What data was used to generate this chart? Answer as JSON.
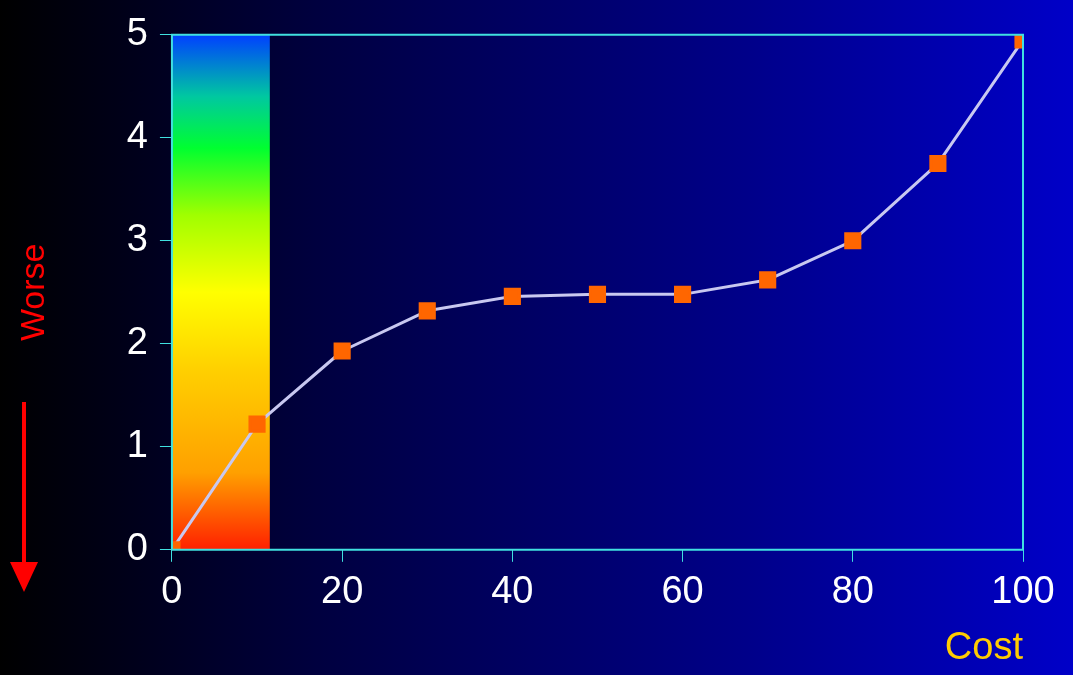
{
  "chart_data": {
    "type": "line",
    "xlabel": "Cost",
    "ylabel": "Worse",
    "x": [
      0,
      10,
      20,
      30,
      40,
      50,
      60,
      70,
      80,
      90,
      100
    ],
    "series": [
      {
        "color": "#ff6600",
        "values": [
          0,
          1.22,
          1.93,
          2.32,
          2.46,
          2.48,
          2.48,
          2.62,
          3.0,
          3.75,
          4.95
        ]
      }
    ],
    "xlim": [
      0,
      100
    ],
    "xticks": [
      0,
      20,
      40,
      60,
      80,
      100
    ],
    "ylim": [
      0,
      5
    ],
    "yticks": [
      0,
      1,
      2,
      3,
      4,
      5
    ],
    "bands": [
      {
        "axis": "x",
        "from": 0,
        "to": 11.5
      }
    ],
    "grid": false,
    "legend": false,
    "marker": "square",
    "line_style": "solid"
  }
}
